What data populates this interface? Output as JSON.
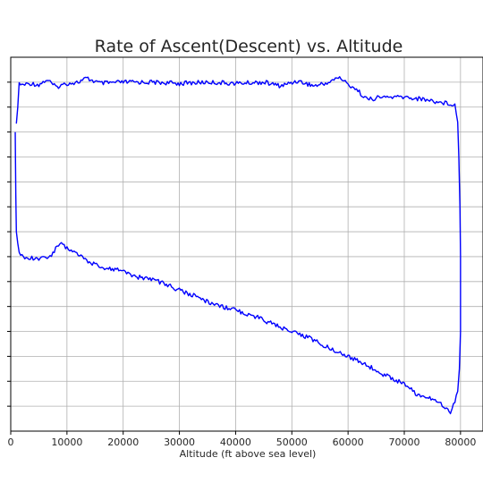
{
  "chart_data": {
    "type": "line",
    "title": "Rate of Ascent(Descent) vs. Altitude",
    "xlabel": "Altitude (ft above sea level)",
    "ylabel": "",
    "xlim": [
      0,
      84000
    ],
    "x_ticks": [
      "0",
      "10000",
      "20000",
      "30000",
      "40000",
      "50000",
      "60000",
      "70000",
      "80000"
    ],
    "grid": true,
    "line_color": "#0000ff",
    "series": [
      {
        "name": "",
        "x": [
          1000,
          1500,
          2500,
          3500,
          5000,
          6500,
          8000,
          10000,
          12000,
          13500,
          16000,
          20000,
          25000,
          30000,
          35000,
          40000,
          45000,
          48000,
          51000,
          54000,
          56000,
          58500,
          60000,
          61000,
          62500,
          63500,
          66000,
          70000,
          74000,
          76000,
          78000,
          79000,
          79500
        ],
        "y": [
          1025,
          1190,
          1190,
          1195,
          1190,
          1210,
          1180,
          1195,
          1200,
          1215,
          1195,
          1200,
          1200,
          1195,
          1200,
          1195,
          1200,
          1185,
          1205,
          1185,
          1195,
          1220,
          1190,
          1180,
          1150,
          1130,
          1140,
          1140,
          1130,
          1120,
          1115,
          1110,
          1040
        ]
      },
      {
        "name": "",
        "x": [
          79500,
          79700,
          79900,
          80000,
          80000,
          79800,
          79500,
          79000,
          78500,
          78200,
          78000,
          77000,
          75000,
          72000,
          70000,
          66000,
          63000,
          60000,
          57000,
          54000,
          50000,
          46000,
          43000,
          40000,
          36000,
          33000,
          30000,
          27000,
          25000,
          22000,
          19000,
          16000,
          14000,
          12000,
          10000,
          9000,
          8000,
          7000,
          5000,
          3000,
          1500,
          1000,
          900,
          800
        ],
        "y": [
          1040,
          900,
          700,
          500,
          200,
          50,
          -40,
          -80,
          -110,
          -130,
          -120,
          -100,
          -70,
          -50,
          -10,
          30,
          70,
          100,
          130,
          165,
          200,
          235,
          265,
          285,
          310,
          340,
          365,
          395,
          410,
          420,
          450,
          455,
          480,
          510,
          535,
          550,
          530,
          500,
          490,
          495,
          510,
          600,
          750,
          1000
        ]
      }
    ]
  }
}
